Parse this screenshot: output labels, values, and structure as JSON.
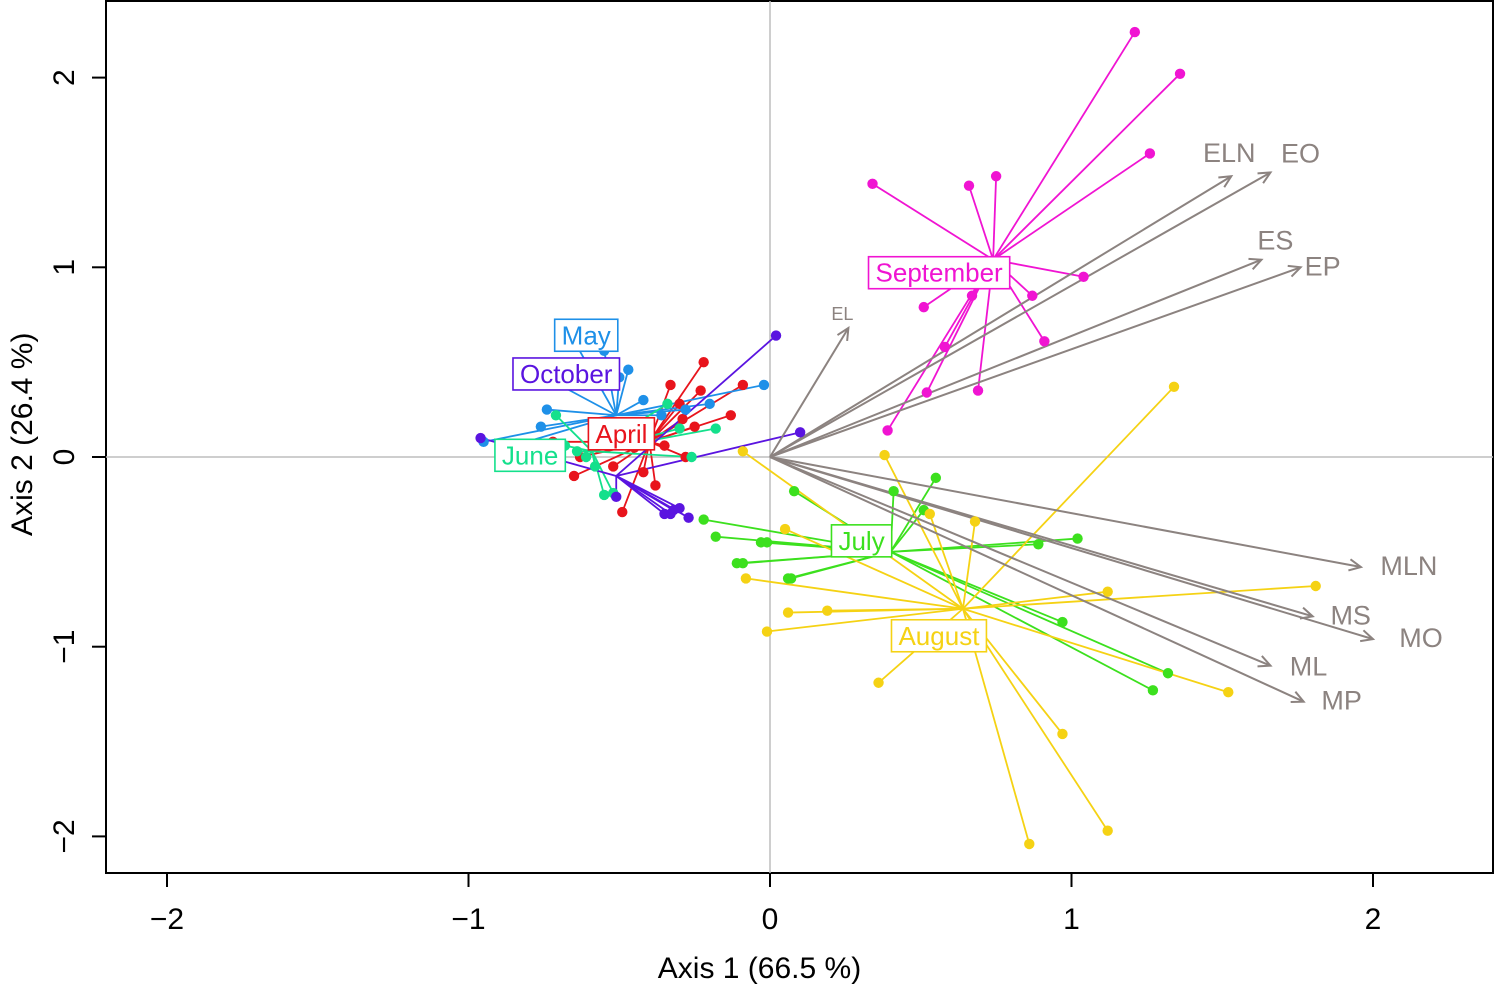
{
  "chart_data": {
    "type": "scatter",
    "subtype": "biplot with group centroids (star plot) and variable arrows",
    "xlabel": "Axis 1 (66.5 %)",
    "ylabel": "Axis 2 (26.4 %)",
    "xlim": [
      -2.2,
      2.4
    ],
    "ylim": [
      -2.2,
      2.4
    ],
    "xticks": [
      -2,
      -1,
      0,
      1,
      2
    ],
    "yticks": [
      -2,
      -1,
      0,
      1,
      2
    ],
    "xtick_labels": [
      "−2",
      "−1",
      "0",
      "1",
      "2"
    ],
    "ytick_labels": [
      "−2",
      "−1",
      "0",
      "1",
      "2"
    ],
    "grid": false,
    "reference_lines": "x=0 and y=0",
    "arrow_color": "#8c8380",
    "variables": [
      {
        "name": "ELN",
        "x": 1.53,
        "y": 1.48
      },
      {
        "name": "EO",
        "x": 1.66,
        "y": 1.5
      },
      {
        "name": "ES",
        "x": 1.63,
        "y": 1.04
      },
      {
        "name": "EP",
        "x": 1.76,
        "y": 1.0
      },
      {
        "name": "EL",
        "x": 0.26,
        "y": 0.68
      },
      {
        "name": "MLN",
        "x": 1.96,
        "y": -0.58
      },
      {
        "name": "MS",
        "x": 1.8,
        "y": -0.84
      },
      {
        "name": "MO",
        "x": 2.0,
        "y": -0.96
      },
      {
        "name": "ML",
        "x": 1.66,
        "y": -1.1
      },
      {
        "name": "MP",
        "x": 1.77,
        "y": -1.29
      }
    ],
    "series": [
      {
        "name": "April",
        "color": "#e8141c",
        "centroid": [
          -0.4,
          0.08
        ],
        "points": [
          [
            -0.72,
            0.08
          ],
          [
            -0.65,
            -0.1
          ],
          [
            -0.63,
            0.0
          ],
          [
            -0.52,
            -0.05
          ],
          [
            -0.49,
            -0.29
          ],
          [
            -0.45,
            0.05
          ],
          [
            -0.42,
            -0.08
          ],
          [
            -0.38,
            -0.15
          ],
          [
            -0.35,
            0.06
          ],
          [
            -0.33,
            0.38
          ],
          [
            -0.3,
            0.28
          ],
          [
            -0.29,
            0.2
          ],
          [
            -0.28,
            0.0
          ],
          [
            -0.25,
            0.16
          ],
          [
            -0.23,
            0.35
          ],
          [
            -0.22,
            0.5
          ],
          [
            -0.13,
            0.22
          ],
          [
            -0.09,
            0.38
          ]
        ]
      },
      {
        "name": "May",
        "color": "#1e90e8",
        "centroid": [
          -0.51,
          0.22
        ],
        "points": [
          [
            -0.95,
            0.08
          ],
          [
            -0.85,
            0.06
          ],
          [
            -0.76,
            0.16
          ],
          [
            -0.74,
            0.25
          ],
          [
            -0.71,
            0.39
          ],
          [
            -0.66,
            0.64
          ],
          [
            -0.55,
            0.56
          ],
          [
            -0.5,
            0.42
          ],
          [
            -0.47,
            0.46
          ],
          [
            -0.42,
            0.3
          ],
          [
            -0.36,
            0.22
          ],
          [
            -0.28,
            0.25
          ],
          [
            -0.2,
            0.28
          ],
          [
            -0.02,
            0.38
          ]
        ]
      },
      {
        "name": "June",
        "color": "#14e08c",
        "centroid": [
          -0.59,
          0.03
        ],
        "points": [
          [
            -0.71,
            0.22
          ],
          [
            -0.68,
            0.06
          ],
          [
            -0.64,
            0.03
          ],
          [
            -0.61,
            0.0
          ],
          [
            -0.58,
            -0.05
          ],
          [
            -0.55,
            -0.2
          ],
          [
            -0.52,
            -0.19
          ],
          [
            -0.41,
            0.1
          ],
          [
            -0.34,
            0.28
          ],
          [
            -0.3,
            0.15
          ],
          [
            -0.26,
            0.0
          ],
          [
            -0.18,
            0.15
          ]
        ]
      },
      {
        "name": "October",
        "color": "#5a14e0",
        "centroid": [
          -0.51,
          -0.1
        ],
        "points": [
          [
            -0.96,
            0.1
          ],
          [
            -0.51,
            -0.21
          ],
          [
            -0.35,
            -0.3
          ],
          [
            -0.33,
            -0.3
          ],
          [
            -0.32,
            -0.28
          ],
          [
            -0.3,
            -0.27
          ],
          [
            -0.27,
            -0.32
          ],
          [
            0.02,
            0.64
          ],
          [
            0.1,
            0.13
          ]
        ]
      },
      {
        "name": "September",
        "color": "#f014d2",
        "centroid": [
          0.74,
          1.04
        ],
        "points": [
          [
            0.34,
            1.44
          ],
          [
            0.39,
            0.14
          ],
          [
            0.51,
            0.79
          ],
          [
            0.52,
            0.34
          ],
          [
            0.58,
            0.58
          ],
          [
            0.62,
            1.02
          ],
          [
            0.66,
            1.43
          ],
          [
            0.67,
            0.85
          ],
          [
            0.69,
            0.35
          ],
          [
            0.71,
            0.92
          ],
          [
            0.73,
            0.91
          ],
          [
            0.75,
            1.48
          ],
          [
            0.87,
            0.85
          ],
          [
            0.91,
            0.61
          ],
          [
            1.04,
            0.95
          ],
          [
            1.21,
            2.24
          ],
          [
            1.26,
            1.6
          ],
          [
            1.36,
            2.02
          ]
        ]
      },
      {
        "name": "July",
        "color": "#3ce01e",
        "centroid": [
          0.4,
          -0.5
        ],
        "points": [
          [
            -0.22,
            -0.33
          ],
          [
            -0.18,
            -0.42
          ],
          [
            -0.11,
            -0.56
          ],
          [
            -0.09,
            -0.56
          ],
          [
            -0.03,
            -0.45
          ],
          [
            -0.01,
            -0.45
          ],
          [
            0.06,
            -0.64
          ],
          [
            0.07,
            -0.64
          ],
          [
            0.08,
            -0.18
          ],
          [
            0.41,
            -0.18
          ],
          [
            0.51,
            -0.28
          ],
          [
            0.55,
            -0.11
          ],
          [
            0.89,
            -0.46
          ],
          [
            0.97,
            -0.87
          ],
          [
            1.02,
            -0.43
          ],
          [
            1.27,
            -1.23
          ],
          [
            1.32,
            -1.14
          ]
        ]
      },
      {
        "name": "August",
        "color": "#f5d214",
        "centroid": [
          0.64,
          -0.8
        ],
        "points": [
          [
            -0.09,
            0.03
          ],
          [
            -0.08,
            -0.64
          ],
          [
            -0.01,
            -0.92
          ],
          [
            0.05,
            -0.38
          ],
          [
            0.06,
            -0.82
          ],
          [
            0.19,
            -0.81
          ],
          [
            0.36,
            -1.19
          ],
          [
            0.38,
            0.01
          ],
          [
            0.53,
            -0.3
          ],
          [
            0.68,
            -0.34
          ],
          [
            0.86,
            -2.04
          ],
          [
            0.97,
            -1.46
          ],
          [
            1.12,
            -0.71
          ],
          [
            1.12,
            -1.97
          ],
          [
            1.34,
            0.37
          ],
          [
            1.52,
            -1.24
          ],
          [
            1.81,
            -0.68
          ]
        ]
      }
    ]
  }
}
